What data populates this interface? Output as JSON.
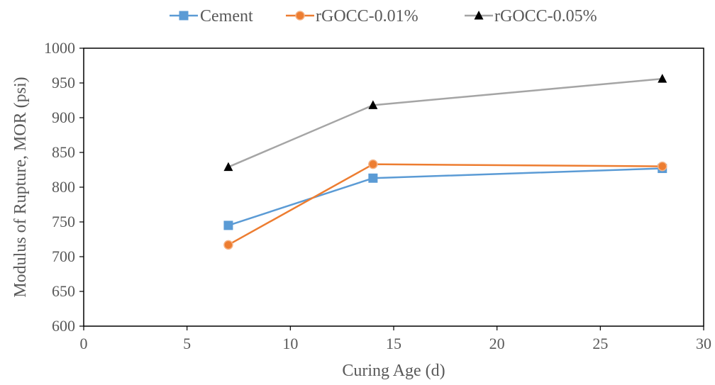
{
  "chart_data": {
    "type": "line",
    "title": "",
    "xlabel": "Curing Age (d)",
    "ylabel": "Modulus of Rupture, MOR (psi)",
    "xlim": [
      0,
      30
    ],
    "ylim": [
      600,
      1000
    ],
    "x_ticks": [
      0,
      5,
      10,
      15,
      20,
      25,
      30
    ],
    "y_ticks": [
      600,
      650,
      700,
      750,
      800,
      850,
      900,
      950,
      1000
    ],
    "grid": false,
    "legend_position": "top",
    "series": [
      {
        "name": "Cement",
        "x": [
          7,
          14,
          28
        ],
        "values": [
          745,
          813,
          827
        ],
        "color": "#5B9BD5",
        "marker": "square"
      },
      {
        "name": "rGOCC-0.01%",
        "x": [
          7,
          14,
          28
        ],
        "values": [
          717,
          833,
          830
        ],
        "color": "#ED7D31",
        "marker": "circle"
      },
      {
        "name": "rGOCC-0.05%",
        "x": [
          7,
          14,
          28
        ],
        "values": [
          829,
          918,
          956
        ],
        "color": "#A5A5A5",
        "marker": "triangle"
      }
    ]
  }
}
